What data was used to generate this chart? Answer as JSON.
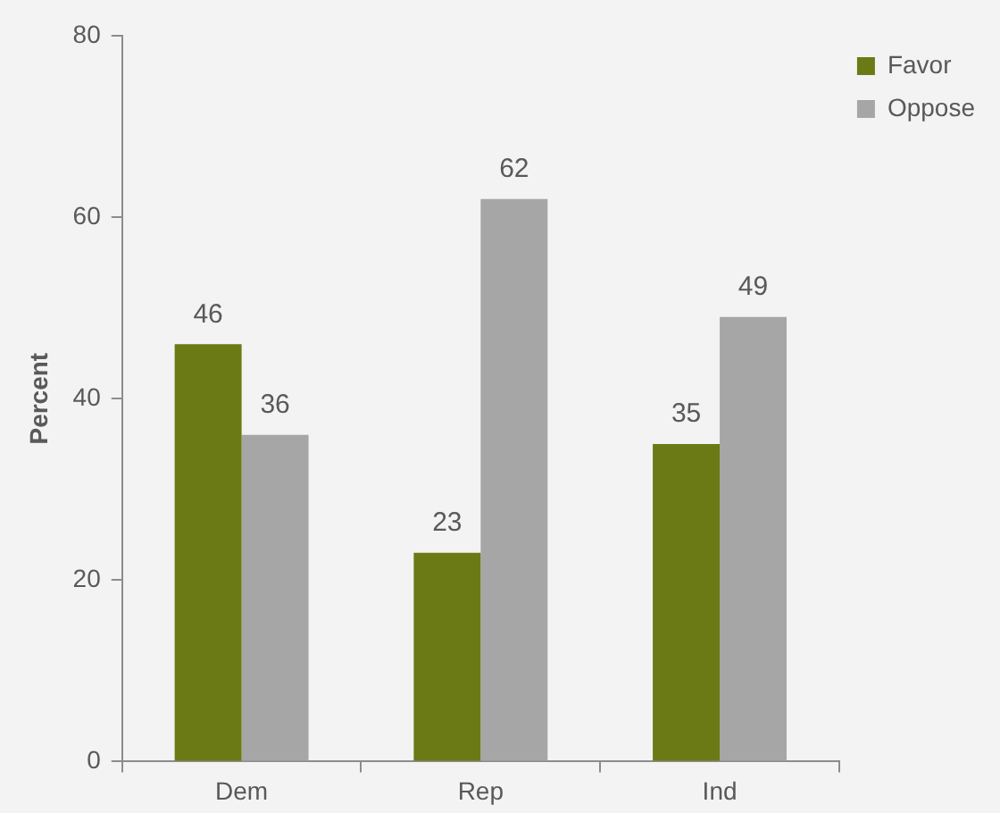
{
  "chart_data": {
    "type": "bar",
    "ylabel": "Percent",
    "categories": [
      "Dem",
      "Rep",
      "Ind"
    ],
    "series": [
      {
        "name": "Favor",
        "color": "#6b7a15",
        "values": [
          46,
          23,
          35
        ]
      },
      {
        "name": "Oppose",
        "color": "#a6a6a6",
        "values": [
          36,
          62,
          49
        ]
      }
    ],
    "ylim": [
      0,
      80
    ],
    "yticks": [
      0,
      20,
      40,
      60,
      80
    ],
    "grid": false,
    "legend": "top right",
    "data_labels": true
  }
}
